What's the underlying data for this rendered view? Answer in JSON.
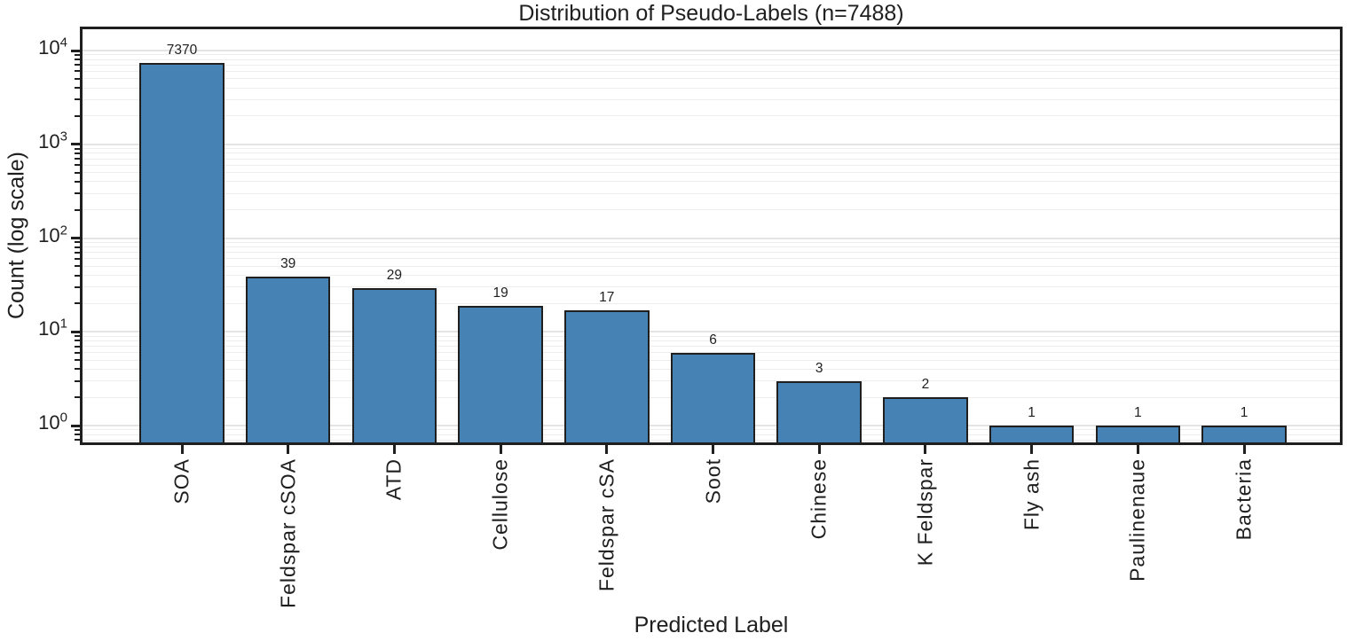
{
  "chart_data": {
    "type": "bar",
    "title": "Distribution of Pseudo-Labels (n=7488)",
    "xlabel": "Predicted Label",
    "ylabel": "Count (log scale)",
    "categories": [
      "SOA",
      "Feldspar cSOA",
      "ATD",
      "Cellulose",
      "Feldspar cSA",
      "Soot",
      "Chinese",
      "K Feldspar",
      "Fly ash",
      "Paulinenaue",
      "Bacteria"
    ],
    "values": [
      7370,
      39,
      29,
      19,
      17,
      6,
      3,
      2,
      1,
      1,
      1
    ],
    "value_labels": [
      "7370",
      "39",
      "29",
      "19",
      "17",
      "6",
      "3",
      "2",
      "1",
      "1",
      "1"
    ],
    "yscale": "log",
    "ylim": [
      0.65,
      17400
    ],
    "ytick_exponents": [
      0,
      1,
      2,
      3,
      4
    ],
    "grid": "horizontal, major and minor, light gray",
    "legend": "none",
    "colors": {
      "bar_fill": "#4682B4",
      "bar_edge": "#1f1f1f",
      "spine": "#1f1f1f",
      "grid_major": "#e4e4e4",
      "grid_minor": "#ededed",
      "text": "#1f1f1f"
    }
  }
}
